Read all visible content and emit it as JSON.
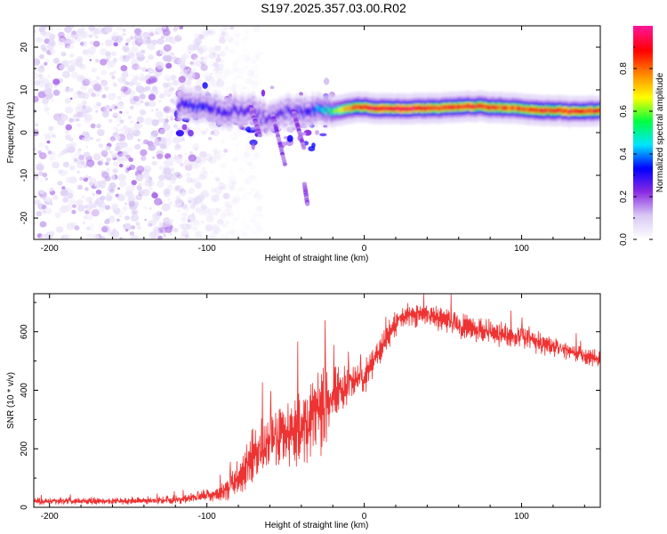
{
  "title": "S197.2025.357.03.00.R02",
  "colors": {
    "background": "#ffffff",
    "axis": "#000000",
    "snr_line": "#ee3333",
    "colorbar_stops": [
      "#ffffff",
      "#d8c8f4",
      "#8a2be2",
      "#0000ff",
      "#00e5ff",
      "#00ff40",
      "#ffff00",
      "#ff8800",
      "#ff0000",
      "#ff1493"
    ]
  },
  "chart_data": [
    {
      "type": "heatmap",
      "name": "spectrogram",
      "xlabel": "Height of straight line (km)",
      "ylabel": "Frequency (Hz)",
      "xlim": [
        -210,
        150
      ],
      "ylim": [
        -25,
        25
      ],
      "xticks": [
        -200,
        -100,
        0,
        100
      ],
      "yticks": [
        -20,
        -10,
        0,
        10,
        20
      ],
      "grid": false,
      "noise_region": {
        "x_range": [
          -210,
          -90
        ],
        "y_range": [
          -25,
          25
        ],
        "amplitude": 0.15
      },
      "signal_band": [
        {
          "x": -118,
          "y": 6.8,
          "amplitude": 0.3
        },
        {
          "x": -105,
          "y": 6.2,
          "amplitude": 0.35
        },
        {
          "x": -92,
          "y": 4.8,
          "amplitude": 0.3
        },
        {
          "x": -75,
          "y": 5.5,
          "amplitude": 0.28
        },
        {
          "x": -62,
          "y": 3.0,
          "amplitude": 0.25
        },
        {
          "x": -48,
          "y": 5.0,
          "amplitude": 0.28
        },
        {
          "x": -35,
          "y": 5.2,
          "amplitude": 0.32
        },
        {
          "x": -20,
          "y": 5.0,
          "amplitude": 0.55
        },
        {
          "x": -5,
          "y": 6.0,
          "amplitude": 0.85
        },
        {
          "x": 10,
          "y": 5.6,
          "amplitude": 0.9
        },
        {
          "x": 30,
          "y": 5.6,
          "amplitude": 0.92
        },
        {
          "x": 50,
          "y": 5.8,
          "amplitude": 0.85
        },
        {
          "x": 70,
          "y": 6.2,
          "amplitude": 0.88
        },
        {
          "x": 90,
          "y": 5.8,
          "amplitude": 0.82
        },
        {
          "x": 110,
          "y": 5.3,
          "amplitude": 0.85
        },
        {
          "x": 130,
          "y": 5.0,
          "amplitude": 0.88
        },
        {
          "x": 150,
          "y": 5.0,
          "amplitude": 0.85
        }
      ],
      "colorbar": {
        "label": "Normalized spectral amplitude",
        "ticks": [
          0.0,
          0.2,
          0.4,
          0.6,
          0.8
        ],
        "range": [
          0,
          1
        ]
      }
    },
    {
      "type": "line",
      "name": "snr",
      "xlabel": "Height of straight line (km)",
      "ylabel": "SNR (10 * v/v)",
      "xlim": [
        -210,
        150
      ],
      "ylim": [
        0,
        730
      ],
      "xticks": [
        -200,
        -100,
        0,
        100
      ],
      "yticks": [
        0,
        200,
        400,
        600
      ],
      "grid": false,
      "series": [
        {
          "name": "SNR",
          "x": [
            -210,
            -180,
            -150,
            -120,
            -100,
            -90,
            -80,
            -70,
            -60,
            -50,
            -40,
            -30,
            -20,
            -10,
            0,
            10,
            20,
            30,
            40,
            50,
            60,
            80,
            100,
            120,
            140,
            150
          ],
          "y": [
            20,
            22,
            22,
            25,
            40,
            50,
            100,
            190,
            220,
            250,
            270,
            320,
            370,
            420,
            440,
            540,
            630,
            660,
            660,
            640,
            620,
            600,
            580,
            550,
            520,
            510
          ],
          "noise": [
            12,
            12,
            12,
            15,
            20,
            30,
            70,
            90,
            110,
            120,
            160,
            150,
            100,
            70,
            55,
            50,
            45,
            40,
            40,
            45,
            45,
            40,
            40,
            35,
            30,
            30
          ]
        }
      ]
    }
  ]
}
